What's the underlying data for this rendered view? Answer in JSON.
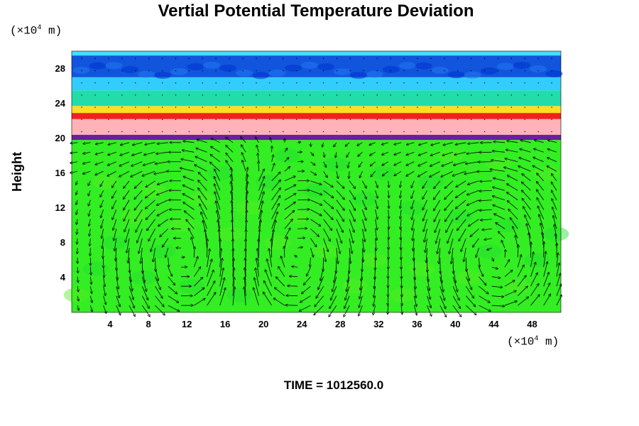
{
  "chart_data": {
    "type": "heatmap",
    "title": "Vertial Potential Temperature Deviation",
    "ylabel": "Height",
    "y_unit_prefix": "(×10",
    "y_unit_exp": "4",
    "y_unit_suffix": " m)",
    "x_unit_prefix": "(×10",
    "x_unit_exp": "4",
    "x_unit_suffix": " m)",
    "xlim": [
      0,
      51
    ],
    "ylim": [
      0,
      30
    ],
    "x_ticks": [
      "4",
      "8",
      "12",
      "16",
      "20",
      "24",
      "28",
      "32",
      "36",
      "40",
      "44",
      "48"
    ],
    "y_ticks": [
      "4",
      "8",
      "12",
      "16",
      "20",
      "24",
      "28"
    ],
    "overlay": "wind vector arrows",
    "bands": [
      {
        "y_from": 0,
        "y_to": 19.8,
        "color": "#33ee22"
      },
      {
        "y_from": 19.8,
        "y_to": 20.4,
        "color": "#6a1fa0"
      },
      {
        "y_from": 20.4,
        "y_to": 22.2,
        "color": "#ffb3b8"
      },
      {
        "y_from": 22.2,
        "y_to": 22.9,
        "color": "#ee2222"
      },
      {
        "y_from": 22.9,
        "y_to": 23.7,
        "color": "#ffdd22"
      },
      {
        "y_from": 23.7,
        "y_to": 25.5,
        "color": "#22ddaa"
      },
      {
        "y_from": 25.5,
        "y_to": 27.0,
        "color": "#33ccff"
      },
      {
        "y_from": 27.0,
        "y_to": 29.5,
        "color": "#1155dd"
      },
      {
        "y_from": 29.5,
        "y_to": 30,
        "color": "#44ddff"
      }
    ],
    "vortex_centers_x": [
      12,
      23,
      44
    ]
  },
  "footer": {
    "time_label": "TIME = 1012560.0"
  }
}
